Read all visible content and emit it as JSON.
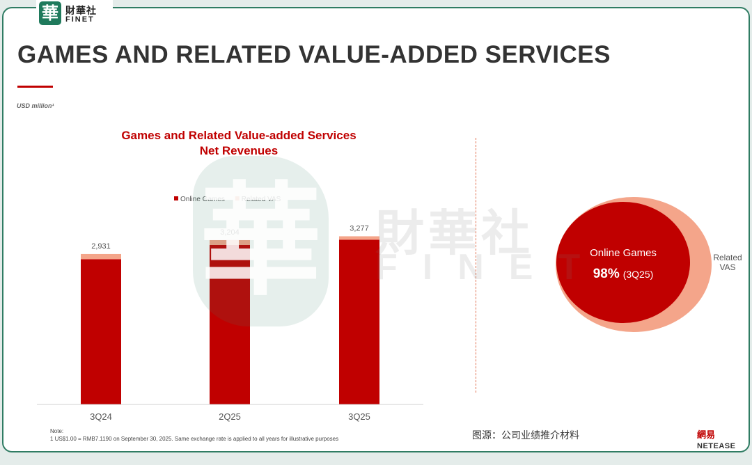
{
  "header": {
    "logo_glyph": "華",
    "logo_cn": "財華社",
    "logo_en": "FINET"
  },
  "slide": {
    "title": "GAMES AND RELATED VALUE-ADDED SERVICES",
    "unit": "USD million¹"
  },
  "chart_data": [
    {
      "type": "bar",
      "stacked": true,
      "title_lines": [
        "Games and Related Value-added Services",
        "Net Revenues"
      ],
      "categories": [
        "3Q24",
        "2Q25",
        "3Q25"
      ],
      "totals": [
        2931,
        3204,
        3277
      ],
      "total_labels": [
        "2,931",
        "3,204",
        "3,277"
      ],
      "series": [
        {
          "name": "Online Games",
          "color": "#c00000",
          "values": [
            2831,
            3107,
            3211
          ]
        },
        {
          "name": "Related VAS",
          "color": "#f4a58a",
          "values": [
            100,
            97,
            66
          ]
        }
      ],
      "legend_position": "top-center",
      "ylim": [
        0,
        3500
      ],
      "grid": false
    },
    {
      "type": "pie",
      "style": "nested-ellipse",
      "slices": [
        {
          "name": "Online Games",
          "value": 98,
          "color": "#c00000"
        },
        {
          "name": "Related VAS",
          "value": 2,
          "color": "#f4a58a"
        }
      ],
      "inner_label": "Online Games",
      "inner_value": "98%",
      "inner_period": "(3Q25)",
      "outer_label_lines": [
        "Related",
        "VAS"
      ]
    }
  ],
  "watermark": {
    "glyph": "華",
    "cn": "財華社",
    "en": "FINET"
  },
  "footer": {
    "note_label": "Note:",
    "note_text": "1    US$1.00 = RMB7.1190 on September 30, 2025. Same exchange rate is applied to all years for illustrative purposes",
    "source": "图源：公司业绩推介材料",
    "brand_cn": "網易",
    "brand_en": "NETEASE"
  }
}
